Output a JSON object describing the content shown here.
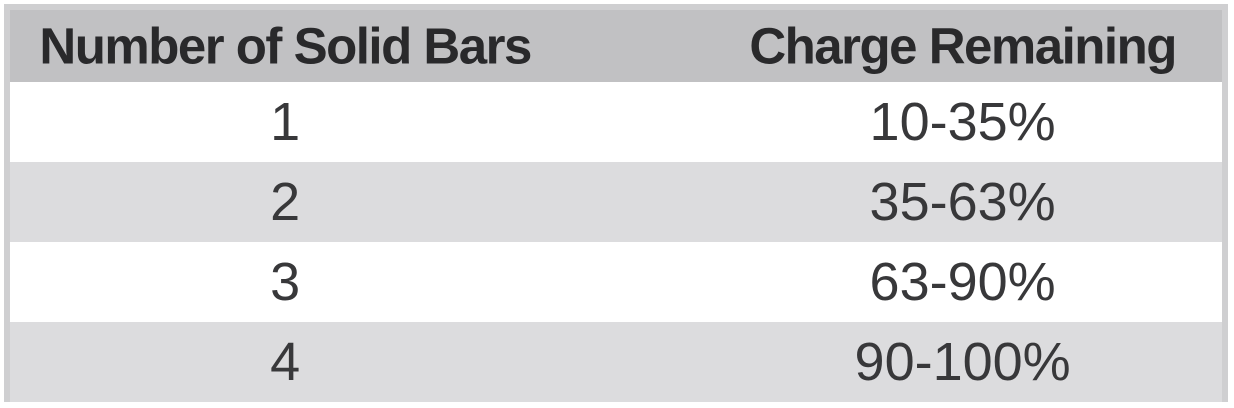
{
  "table": {
    "columns": [
      {
        "key": "bars",
        "label": "Number of Solid Bars"
      },
      {
        "key": "charge",
        "label": "Charge Remaining"
      }
    ],
    "rows": [
      {
        "bars": "1",
        "charge": "10-35%"
      },
      {
        "bars": "2",
        "charge": "35-63%"
      },
      {
        "bars": "3",
        "charge": "63-90%"
      },
      {
        "bars": "4",
        "charge": "90-100%"
      }
    ]
  },
  "chart_data": {
    "type": "table",
    "title": "",
    "columns": [
      "Number of Solid Bars",
      "Charge Remaining"
    ],
    "rows": [
      [
        "1",
        "10-35%"
      ],
      [
        "2",
        "35-63%"
      ],
      [
        "3",
        "63-90%"
      ],
      [
        "4",
        "90-100%"
      ]
    ]
  },
  "colors": {
    "header_bg": "#c1c1c3",
    "row_alt_bg": "#dcdcde",
    "row_bg": "#ffffff",
    "table_border": "#cfcfd1",
    "header_text": "#29292b",
    "data_text": "#38383a"
  }
}
